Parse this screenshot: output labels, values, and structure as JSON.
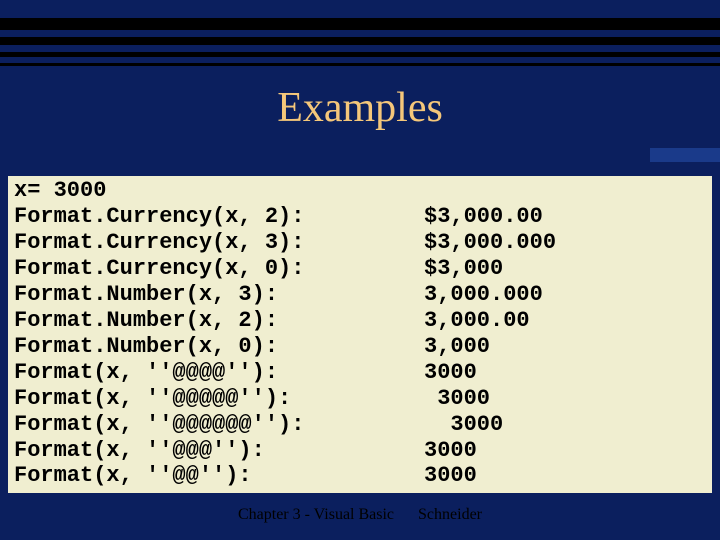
{
  "slide": {
    "title": "Examples",
    "background_color": "#0b1f5e",
    "title_color": "#f5c77a",
    "code_bg": "#f0eed0",
    "code_text_color": "#000000"
  },
  "code": {
    "header": "x= 3000",
    "rows": [
      {
        "left": "Format.Currency(x, 2):",
        "right": "$3,000.00"
      },
      {
        "left": "Format.Currency(x, 3):",
        "right": "$3,000.000"
      },
      {
        "left": "Format.Currency(x, 0):",
        "right": "$3,000"
      },
      {
        "left": "Format.Number(x, 3):",
        "right": "3,000.000"
      },
      {
        "left": "Format.Number(x, 2):",
        "right": "3,000.00"
      },
      {
        "left": "Format.Number(x, 0):",
        "right": "3,000"
      },
      {
        "left": "Format(x, ''@@@@''):",
        "right": "3000"
      },
      {
        "left": "Format(x, ''@@@@@''):",
        "right": " 3000"
      },
      {
        "left": "Format(x, ''@@@@@@''):",
        "right": "  3000"
      },
      {
        "left": "Format(x, ''@@@''):",
        "right": "3000"
      },
      {
        "left": "Format(x, ''@@''):",
        "right": "3000"
      }
    ]
  },
  "footer": {
    "left": "Chapter 3 - Visual Basic",
    "right": "Schneider"
  }
}
